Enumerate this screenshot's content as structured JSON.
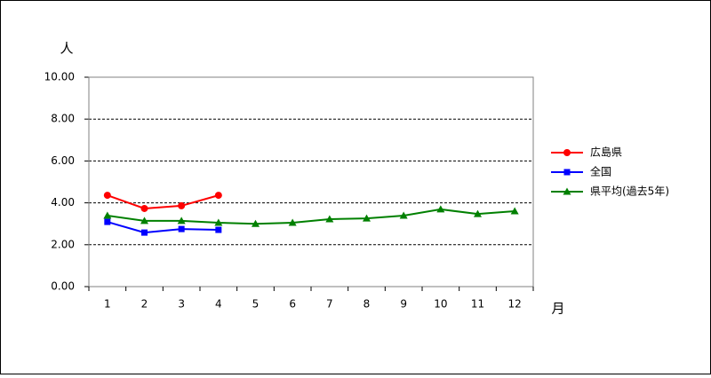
{
  "chart_data": {
    "type": "line",
    "y_label": "人",
    "x_label": "月",
    "categories": [
      "1",
      "2",
      "3",
      "4",
      "5",
      "6",
      "7",
      "8",
      "9",
      "10",
      "11",
      "12"
    ],
    "series": [
      {
        "name": "広島県",
        "color": "#ff0000",
        "marker": "circle",
        "values": [
          4.36,
          3.73,
          3.86,
          4.36,
          null,
          null,
          null,
          null,
          null,
          null,
          null,
          null
        ]
      },
      {
        "name": "全国",
        "color": "#0000ff",
        "marker": "square",
        "values": [
          3.09,
          2.58,
          2.75,
          2.71,
          null,
          null,
          null,
          null,
          null,
          null,
          null,
          null
        ]
      },
      {
        "name": "県平均(過去5年)",
        "color": "#008000",
        "marker": "triangle",
        "values": [
          3.39,
          3.14,
          3.14,
          3.05,
          3.0,
          3.05,
          3.22,
          3.26,
          3.39,
          3.69,
          3.47,
          3.6
        ]
      }
    ],
    "ylim": [
      0,
      10
    ],
    "yticks": [
      {
        "value": 0,
        "label": "0.00"
      },
      {
        "value": 2,
        "label": "2.00"
      },
      {
        "value": 4,
        "label": "4.00"
      },
      {
        "value": 6,
        "label": "6.00"
      },
      {
        "value": 8,
        "label": "8.00"
      },
      {
        "value": 10,
        "label": "10.00"
      }
    ],
    "grid": true,
    "legend": "right"
  }
}
